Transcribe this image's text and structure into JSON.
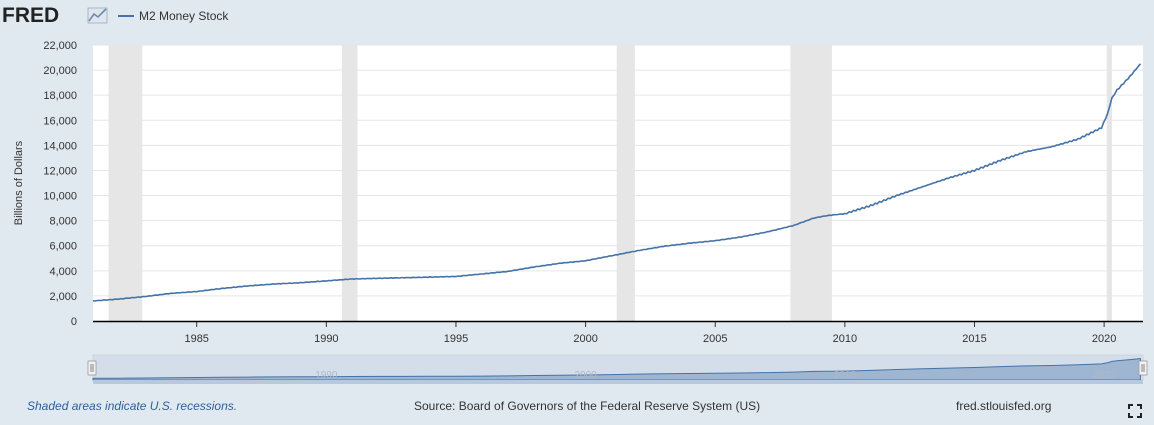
{
  "header": {
    "logo_text": "FRED",
    "legend": [
      {
        "label": "M2 Money Stock",
        "color": "#4572a7"
      }
    ]
  },
  "footer": {
    "note": "Shaded areas indicate U.S. recessions.",
    "source": "Source: Board of Governors of the Federal Reserve System (US)",
    "site": "fred.stlouisfed.org"
  },
  "colors": {
    "page_background": "#e1e9f0",
    "plot_background": "#ffffff",
    "line": "#4572a7",
    "recession_band": "#e6e6e6",
    "navigator_fill": "#c6d4e5",
    "navigator_bar": "#b8c9de"
  },
  "chart_data": {
    "type": "line",
    "title": "",
    "xlabel": "",
    "ylabel": "Billions of Dollars",
    "xlim": [
      1981.0,
      2021.5
    ],
    "ylim": [
      0,
      22000
    ],
    "yticks": [
      0,
      2000,
      4000,
      6000,
      8000,
      10000,
      12000,
      14000,
      16000,
      18000,
      20000,
      22000
    ],
    "ytick_labels": [
      "0",
      "2,000",
      "4,000",
      "6,000",
      "8,000",
      "10,000",
      "12,000",
      "14,000",
      "16,000",
      "18,000",
      "20,000",
      "22,000"
    ],
    "xticks": [
      1985,
      1990,
      1995,
      2000,
      2005,
      2010,
      2015,
      2020
    ],
    "xtick_labels": [
      "1985",
      "1990",
      "1995",
      "2000",
      "2005",
      "2010",
      "2015",
      "2020"
    ],
    "grid": true,
    "legend_position": "top-left",
    "recessions": [
      [
        1981.6,
        1982.9
      ],
      [
        1990.6,
        1991.2
      ],
      [
        2001.2,
        2001.9
      ],
      [
        2007.9,
        2009.5
      ],
      [
        2020.1,
        2020.3
      ]
    ],
    "series": [
      {
        "name": "M2 Money Stock",
        "x": [
          1981.0,
          1982.0,
          1983.0,
          1984.0,
          1985.0,
          1986.0,
          1987.0,
          1988.0,
          1989.0,
          1990.0,
          1991.0,
          1992.0,
          1993.0,
          1994.0,
          1995.0,
          1996.0,
          1997.0,
          1998.0,
          1999.0,
          2000.0,
          2001.0,
          2002.0,
          2003.0,
          2004.0,
          2005.0,
          2006.0,
          2007.0,
          2008.0,
          2008.8,
          2009.3,
          2010.0,
          2011.0,
          2012.0,
          2013.0,
          2014.0,
          2015.0,
          2016.0,
          2017.0,
          2018.0,
          2019.0,
          2019.9,
          2020.15,
          2020.3,
          2020.5,
          2021.0,
          2021.4
        ],
        "values": [
          1600,
          1750,
          1950,
          2200,
          2350,
          2600,
          2800,
          2950,
          3050,
          3200,
          3350,
          3400,
          3450,
          3500,
          3550,
          3750,
          3950,
          4300,
          4600,
          4800,
          5200,
          5600,
          5950,
          6200,
          6400,
          6700,
          7100,
          7600,
          8200,
          8400,
          8550,
          9200,
          10000,
          10700,
          11400,
          12000,
          12800,
          13500,
          13900,
          14500,
          15400,
          16600,
          17800,
          18400,
          19500,
          20500
        ]
      }
    ]
  },
  "navigator": {
    "xticks": [
      1990,
      2000,
      2010,
      2020
    ],
    "xtick_labels": [
      "1990",
      "2000",
      "2010",
      "2020"
    ]
  }
}
